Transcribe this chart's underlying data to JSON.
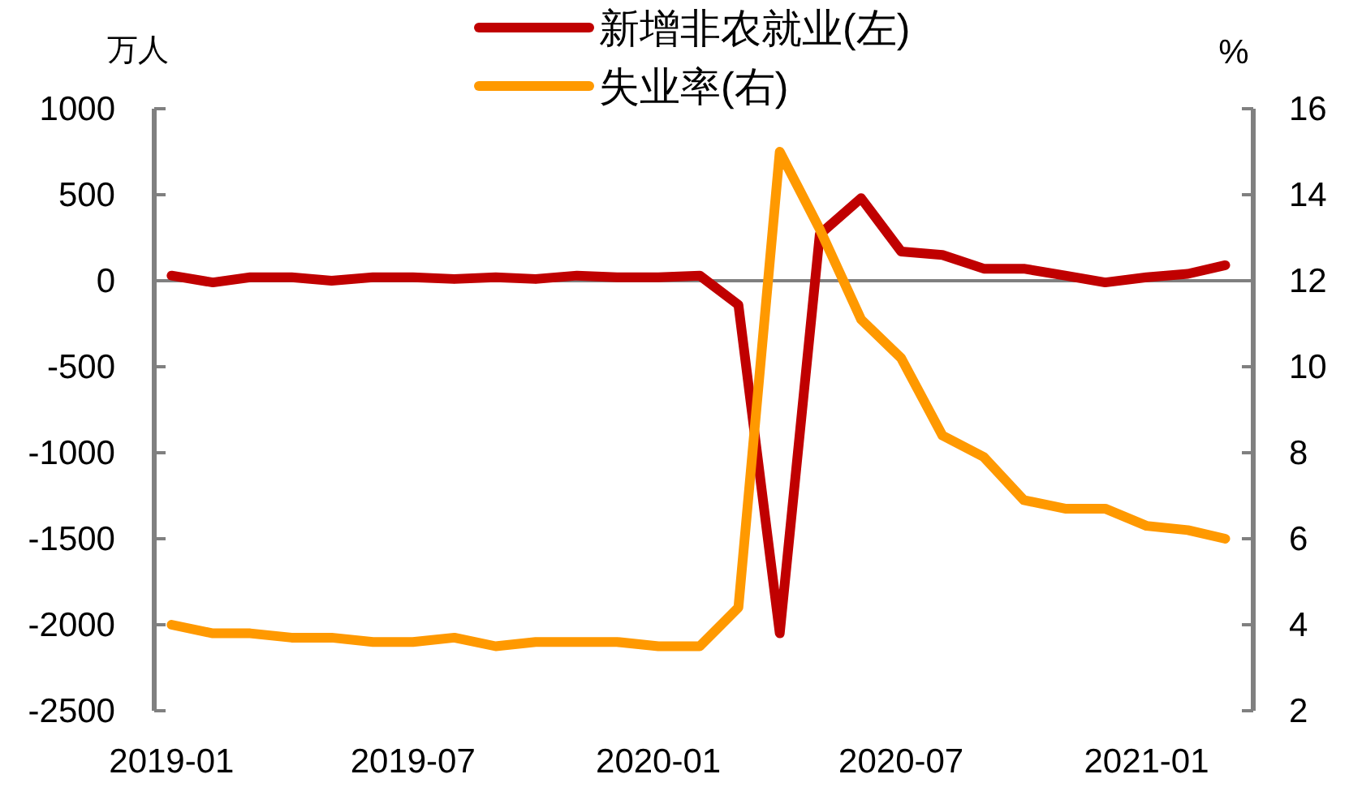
{
  "chart_data": {
    "type": "line",
    "ylabel": "万人",
    "y2label": "%",
    "legend": "top",
    "grid": false,
    "marker": "none",
    "line_style": "solid",
    "x": [
      "2019-01",
      "2019-02",
      "2019-03",
      "2019-04",
      "2019-05",
      "2019-06",
      "2019-07",
      "2019-08",
      "2019-09",
      "2019-10",
      "2019-11",
      "2019-12",
      "2020-01",
      "2020-02",
      "2020-03",
      "2020-04",
      "2020-05",
      "2020-06",
      "2020-07",
      "2020-08",
      "2020-09",
      "2020-10",
      "2020-11",
      "2020-12",
      "2021-01",
      "2021-02",
      "2021-03"
    ],
    "xlim": [
      "2018-12-19",
      "2021-03-22"
    ],
    "xticks": [
      "2019-01",
      "2019-07",
      "2020-01",
      "2020-07",
      "2021-01"
    ],
    "ylim": [
      -2500,
      1000
    ],
    "yticks": [
      -2500,
      -2000,
      -1500,
      -1000,
      -500,
      0,
      500,
      1000
    ],
    "ref_lines": [
      {
        "axis": "y",
        "value": 0,
        "color": "#808080"
      }
    ],
    "y2lim": [
      2,
      16
    ],
    "y2ticks": [
      2,
      4,
      6,
      8,
      10,
      12,
      14,
      16
    ],
    "series": [
      {
        "name": "新增非农就业(左)",
        "color": "#c00000",
        "values": [
          30,
          -10,
          20,
          20,
          0,
          20,
          20,
          10,
          20,
          10,
          30,
          20,
          20,
          30,
          -140,
          -2050,
          270,
          480,
          170,
          150,
          70,
          70,
          30,
          -10,
          20,
          40,
          90
        ]
      },
      {
        "name": "失业率(右)",
        "color": "#ff9900",
        "axis": "y2",
        "values": [
          4.0,
          3.8,
          3.8,
          3.7,
          3.7,
          3.6,
          3.6,
          3.7,
          3.5,
          3.6,
          3.6,
          3.6,
          3.5,
          3.5,
          4.4,
          15.0,
          13.2,
          11.1,
          10.2,
          8.4,
          7.9,
          6.9,
          6.7,
          6.7,
          6.3,
          6.2,
          6.0
        ]
      }
    ]
  }
}
